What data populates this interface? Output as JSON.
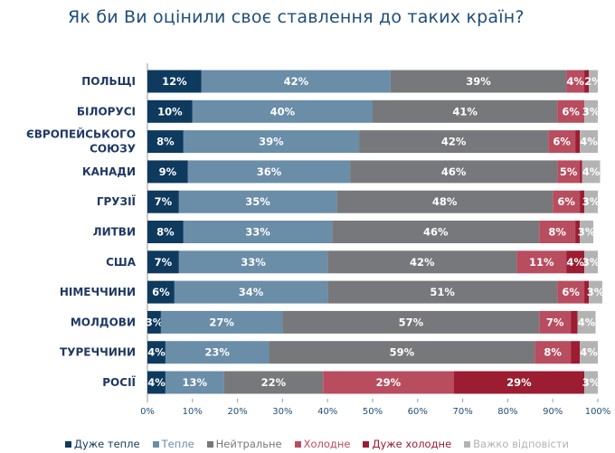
{
  "chart_data": {
    "type": "bar",
    "orientation": "horizontal-stacked-100",
    "title": "Як би Ви оцінили своє ставлення до таких країн?",
    "categories": [
      "ПОЛЬЩІ",
      "БІЛОРУСІ",
      "ЄВРОПЕЙСЬКОГО СОЮЗУ",
      "КАНАДИ",
      "ГРУЗІЇ",
      "ЛИТВИ",
      "США",
      "НІМЕЧЧИНИ",
      "МОЛДОВИ",
      "ТУРЕЧЧИНИ",
      "РОСІЇ"
    ],
    "series": [
      {
        "name": "Дуже тепле",
        "color": "#0e3a5e",
        "values": [
          12,
          10,
          8,
          9,
          7,
          8,
          7,
          6,
          3,
          4,
          4
        ]
      },
      {
        "name": "Тепле",
        "color": "#6a8da8",
        "values": [
          42,
          40,
          39,
          36,
          35,
          33,
          33,
          34,
          27,
          23,
          13
        ]
      },
      {
        "name": "Нейтральне",
        "color": "#77787b",
        "values": [
          39,
          41,
          42,
          46,
          48,
          46,
          42,
          51,
          57,
          59,
          22
        ]
      },
      {
        "name": "Холодне",
        "color": "#b84d5f",
        "values": [
          4,
          6,
          6,
          5,
          6,
          8,
          11,
          6,
          7,
          8,
          29
        ]
      },
      {
        "name": "Дуже холодне",
        "color": "#9c1c32",
        "values": [
          1,
          0,
          1,
          0.5,
          1,
          1,
          4,
          1,
          1.5,
          2,
          29
        ]
      },
      {
        "name": "Важко відповісти",
        "color": "#b3b3b3",
        "values": [
          2,
          3,
          4,
          4,
          3,
          3,
          3,
          3,
          4,
          4,
          3
        ]
      }
    ],
    "labeled": [
      [
        true,
        true,
        true,
        true,
        false,
        true
      ],
      [
        true,
        true,
        true,
        true,
        false,
        true
      ],
      [
        true,
        true,
        true,
        true,
        false,
        true
      ],
      [
        true,
        true,
        true,
        true,
        false,
        true
      ],
      [
        true,
        true,
        true,
        true,
        false,
        true
      ],
      [
        true,
        true,
        true,
        true,
        false,
        true
      ],
      [
        true,
        true,
        true,
        true,
        true,
        true
      ],
      [
        true,
        true,
        true,
        true,
        false,
        true
      ],
      [
        true,
        true,
        true,
        true,
        false,
        true
      ],
      [
        true,
        true,
        true,
        true,
        false,
        true
      ],
      [
        true,
        true,
        true,
        true,
        true,
        true
      ]
    ],
    "xticks": [
      "0%",
      "10%",
      "20%",
      "30%",
      "40%",
      "50%",
      "60%",
      "70%",
      "80%",
      "90%",
      "100%"
    ],
    "xlim": [
      0,
      100
    ],
    "legend": "bottom"
  }
}
